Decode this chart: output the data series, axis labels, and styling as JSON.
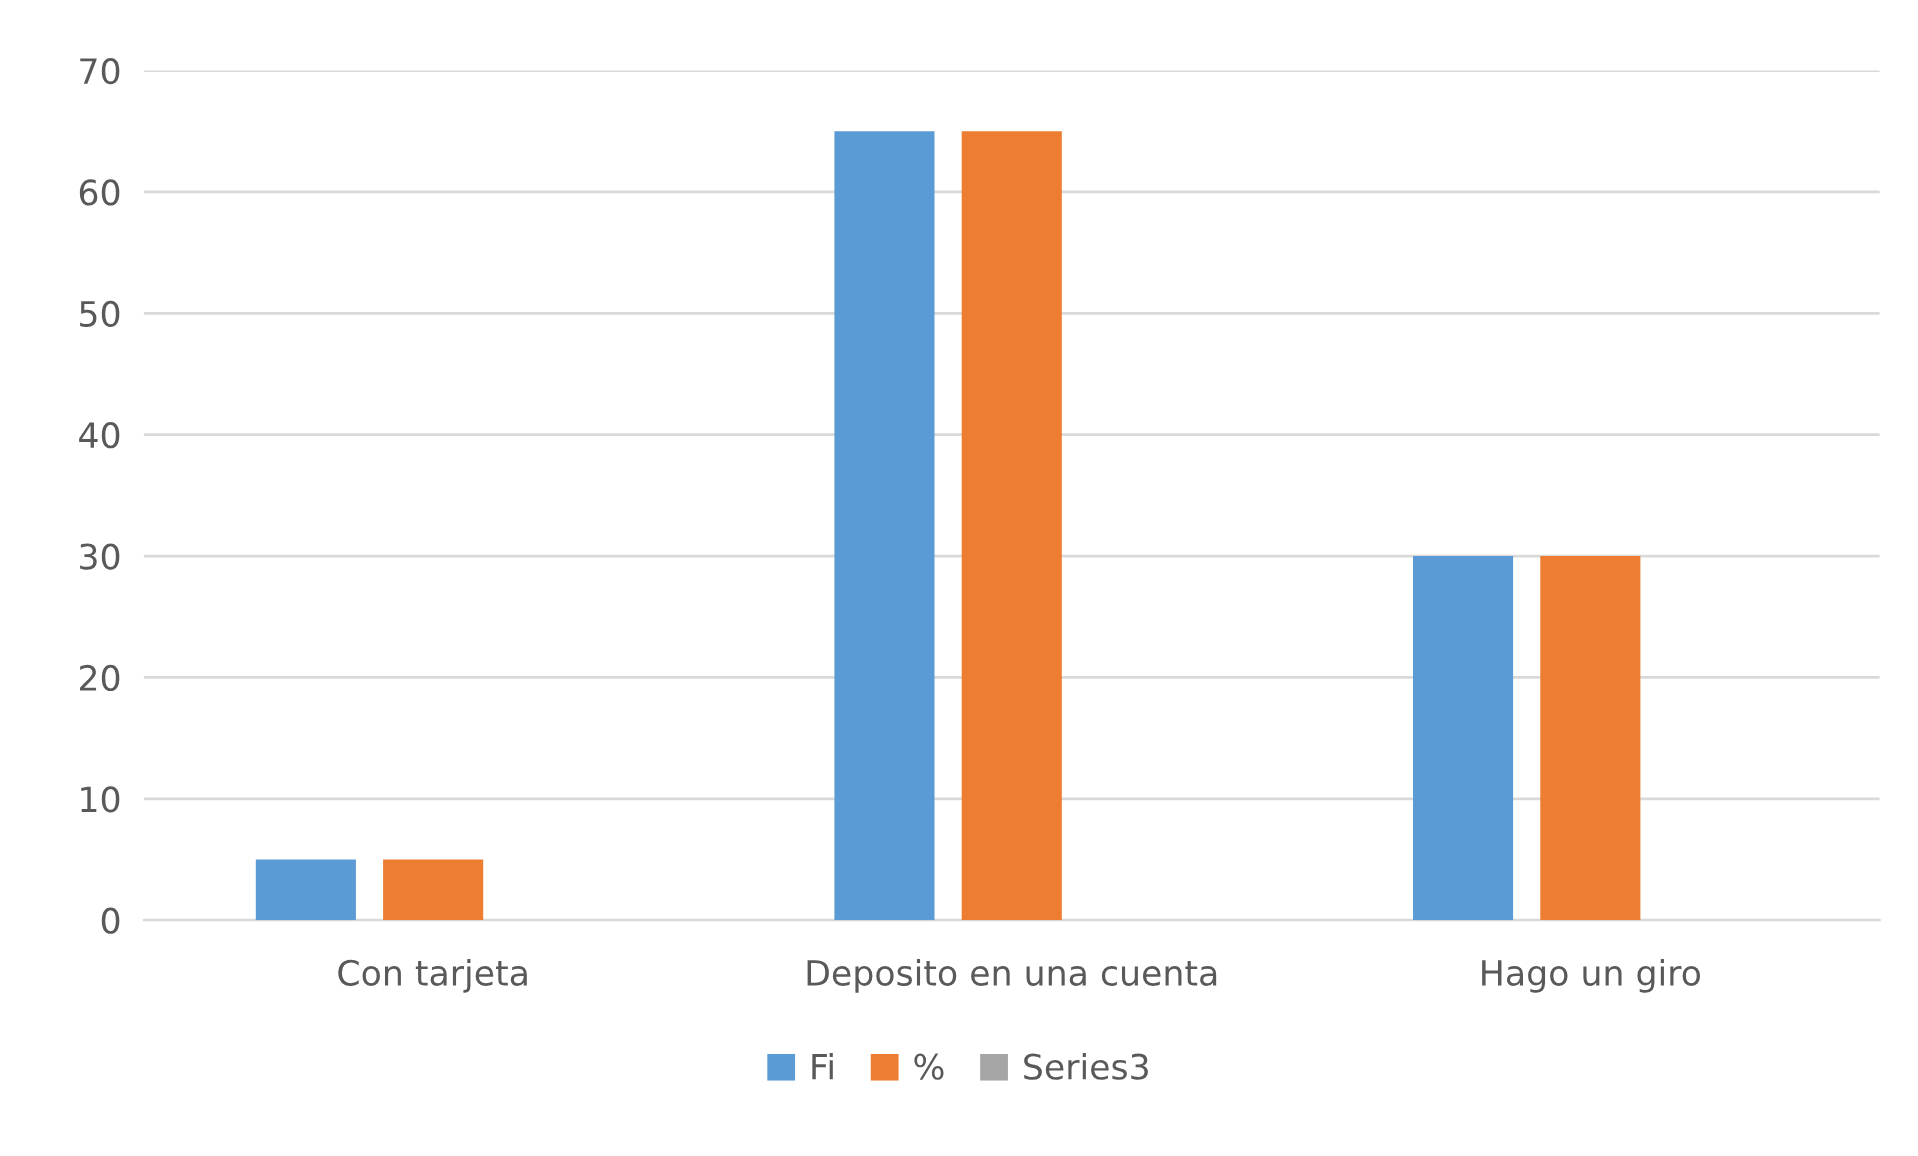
{
  "chart_data": {
    "type": "bar",
    "categories": [
      "Con tarjeta",
      "Deposito en una cuenta",
      "Hago un giro"
    ],
    "series": [
      {
        "name": "Fi",
        "color": "#5b9bd5",
        "values": [
          5,
          65,
          30
        ]
      },
      {
        "name": "%",
        "color": "#ed7d31",
        "values": [
          5,
          65,
          30
        ]
      },
      {
        "name": "Series3",
        "color": "#a5a5a5",
        "values": [
          null,
          null,
          null
        ]
      }
    ],
    "ylim": [
      0,
      70
    ],
    "yticks": [
      0,
      10,
      20,
      30,
      40,
      50,
      60,
      70
    ],
    "grid": "y",
    "legend": "bottom"
  }
}
